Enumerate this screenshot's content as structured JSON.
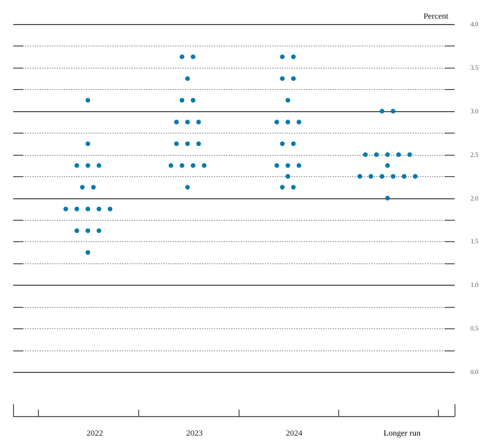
{
  "chart_data": {
    "type": "scatter",
    "title": "",
    "unit_label": "Percent",
    "xlabel": "",
    "ylabel": "Percent",
    "ylim": [
      0.0,
      4.0
    ],
    "y_ticks": [
      "0.0",
      "0.5",
      "1.0",
      "1.5",
      "2.0",
      "2.5",
      "3.0",
      "3.5",
      "4.0"
    ],
    "grid": "solid lines at whole percents, dotted lines at 0.25 increments",
    "categories": [
      "2022",
      "2023",
      "2024",
      "Longer run"
    ],
    "marker_color": "#0a7aaa",
    "series": [
      {
        "name": "2022",
        "points": [
          {
            "value": 3.125,
            "count": 1
          },
          {
            "value": 2.625,
            "count": 1
          },
          {
            "value": 2.375,
            "count": 3
          },
          {
            "value": 2.125,
            "count": 2
          },
          {
            "value": 1.875,
            "count": 5
          },
          {
            "value": 1.625,
            "count": 3
          },
          {
            "value": 1.375,
            "count": 1
          }
        ]
      },
      {
        "name": "2023",
        "points": [
          {
            "value": 3.625,
            "count": 2
          },
          {
            "value": 3.375,
            "count": 1
          },
          {
            "value": 3.125,
            "count": 2
          },
          {
            "value": 2.875,
            "count": 3
          },
          {
            "value": 2.625,
            "count": 3
          },
          {
            "value": 2.375,
            "count": 4
          },
          {
            "value": 2.125,
            "count": 1
          }
        ]
      },
      {
        "name": "2024",
        "points": [
          {
            "value": 3.625,
            "count": 2
          },
          {
            "value": 3.375,
            "count": 2
          },
          {
            "value": 3.125,
            "count": 1
          },
          {
            "value": 2.875,
            "count": 3
          },
          {
            "value": 2.625,
            "count": 2
          },
          {
            "value": 2.375,
            "count": 3
          },
          {
            "value": 2.25,
            "count": 1
          },
          {
            "value": 2.125,
            "count": 2
          }
        ]
      },
      {
        "name": "Longer run",
        "points": [
          {
            "value": 3.0,
            "count": 2
          },
          {
            "value": 2.5,
            "count": 5
          },
          {
            "value": 2.375,
            "count": 1
          },
          {
            "value": 2.25,
            "count": 6
          },
          {
            "value": 2.0,
            "count": 1
          }
        ]
      }
    ]
  }
}
